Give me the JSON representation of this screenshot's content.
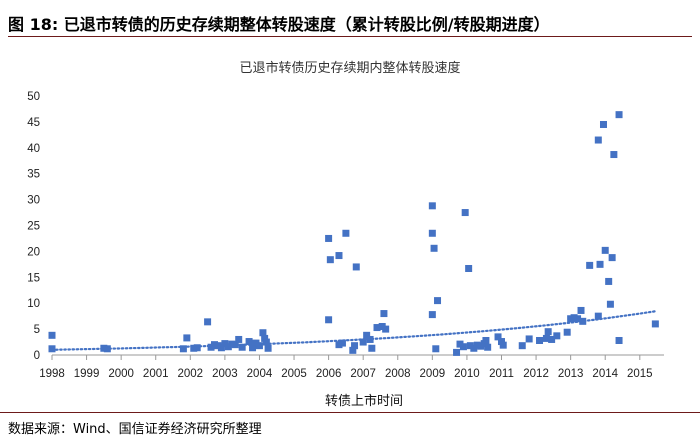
{
  "figure": {
    "heading": "图 18:  已退市转债的历史存续期整体转股速度（累计转股比例/转股期进度）",
    "source": "数据来源：Wind、国信证券经济研究所整理"
  },
  "chart_data": {
    "type": "scatter",
    "title": "已退市转债历史存续期内整体转股速度",
    "xlabel": "转债上市时间",
    "ylabel": "",
    "xlim": [
      1998,
      2015.7
    ],
    "ylim": [
      0,
      50
    ],
    "x_ticks": [
      "1998",
      "1999",
      "2000",
      "2001",
      "2002",
      "2003",
      "2004",
      "2005",
      "2006",
      "2007",
      "2008",
      "2009",
      "2010",
      "2011",
      "2012",
      "2013",
      "2014",
      "2015"
    ],
    "y_ticks": [
      "0",
      "5",
      "10",
      "15",
      "20",
      "25",
      "30",
      "35",
      "40",
      "45",
      "50"
    ],
    "grid": false,
    "legend": "none",
    "marker_color": "#4472c4",
    "trendline": {
      "type": "exponential",
      "style": "dotted",
      "color": "#4472c4",
      "start": [
        1998,
        1.0
      ],
      "end": [
        2015.5,
        8.5
      ]
    },
    "points": [
      {
        "x": 1998.0,
        "y": 3.8
      },
      {
        "x": 1998.0,
        "y": 1.2
      },
      {
        "x": 1999.5,
        "y": 1.3
      },
      {
        "x": 1999.6,
        "y": 1.2
      },
      {
        "x": 2001.8,
        "y": 1.2
      },
      {
        "x": 2001.9,
        "y": 3.3
      },
      {
        "x": 2002.1,
        "y": 1.3
      },
      {
        "x": 2002.2,
        "y": 1.4
      },
      {
        "x": 2002.5,
        "y": 6.4
      },
      {
        "x": 2002.6,
        "y": 1.5
      },
      {
        "x": 2002.7,
        "y": 2.0
      },
      {
        "x": 2002.8,
        "y": 1.8
      },
      {
        "x": 2002.9,
        "y": 1.4
      },
      {
        "x": 2003.0,
        "y": 2.2
      },
      {
        "x": 2003.1,
        "y": 1.6
      },
      {
        "x": 2003.2,
        "y": 2.1
      },
      {
        "x": 2003.3,
        "y": 2.0
      },
      {
        "x": 2003.4,
        "y": 3.0
      },
      {
        "x": 2003.5,
        "y": 1.5
      },
      {
        "x": 2003.7,
        "y": 2.6
      },
      {
        "x": 2003.8,
        "y": 1.4
      },
      {
        "x": 2003.9,
        "y": 2.3
      },
      {
        "x": 2004.0,
        "y": 1.8
      },
      {
        "x": 2004.1,
        "y": 4.3
      },
      {
        "x": 2004.15,
        "y": 3.2
      },
      {
        "x": 2004.2,
        "y": 2.5
      },
      {
        "x": 2004.25,
        "y": 1.3
      },
      {
        "x": 2006.0,
        "y": 22.5
      },
      {
        "x": 2006.05,
        "y": 18.4
      },
      {
        "x": 2006.0,
        "y": 6.8
      },
      {
        "x": 2006.3,
        "y": 19.2
      },
      {
        "x": 2006.3,
        "y": 2.0
      },
      {
        "x": 2006.4,
        "y": 2.3
      },
      {
        "x": 2006.5,
        "y": 23.5
      },
      {
        "x": 2006.7,
        "y": 0.9
      },
      {
        "x": 2006.75,
        "y": 1.8
      },
      {
        "x": 2006.8,
        "y": 17.0
      },
      {
        "x": 2007.0,
        "y": 2.5
      },
      {
        "x": 2007.1,
        "y": 3.8
      },
      {
        "x": 2007.2,
        "y": 3.0
      },
      {
        "x": 2007.25,
        "y": 1.3
      },
      {
        "x": 2007.4,
        "y": 5.3
      },
      {
        "x": 2007.55,
        "y": 5.5
      },
      {
        "x": 2007.6,
        "y": 8.0
      },
      {
        "x": 2007.65,
        "y": 5.0
      },
      {
        "x": 2009.0,
        "y": 28.8
      },
      {
        "x": 2009.0,
        "y": 23.5
      },
      {
        "x": 2009.05,
        "y": 20.6
      },
      {
        "x": 2009.0,
        "y": 7.8
      },
      {
        "x": 2009.15,
        "y": 10.5
      },
      {
        "x": 2009.1,
        "y": 1.2
      },
      {
        "x": 2009.7,
        "y": 0.5
      },
      {
        "x": 2009.8,
        "y": 2.1
      },
      {
        "x": 2009.9,
        "y": 1.6
      },
      {
        "x": 2009.95,
        "y": 27.5
      },
      {
        "x": 2010.05,
        "y": 16.7
      },
      {
        "x": 2010.1,
        "y": 1.8
      },
      {
        "x": 2010.2,
        "y": 1.3
      },
      {
        "x": 2010.3,
        "y": 1.9
      },
      {
        "x": 2010.4,
        "y": 1.7
      },
      {
        "x": 2010.5,
        "y": 2.2
      },
      {
        "x": 2010.55,
        "y": 2.8
      },
      {
        "x": 2010.6,
        "y": 1.5
      },
      {
        "x": 2010.9,
        "y": 3.5
      },
      {
        "x": 2011.0,
        "y": 2.6
      },
      {
        "x": 2011.05,
        "y": 1.9
      },
      {
        "x": 2011.6,
        "y": 1.8
      },
      {
        "x": 2011.8,
        "y": 3.1
      },
      {
        "x": 2012.1,
        "y": 2.8
      },
      {
        "x": 2012.3,
        "y": 3.2
      },
      {
        "x": 2012.35,
        "y": 4.5
      },
      {
        "x": 2012.45,
        "y": 3.0
      },
      {
        "x": 2012.6,
        "y": 3.7
      },
      {
        "x": 2012.9,
        "y": 4.4
      },
      {
        "x": 2013.0,
        "y": 7.0
      },
      {
        "x": 2013.1,
        "y": 7.2
      },
      {
        "x": 2013.2,
        "y": 7.0
      },
      {
        "x": 2013.3,
        "y": 8.6
      },
      {
        "x": 2013.35,
        "y": 6.5
      },
      {
        "x": 2013.55,
        "y": 17.3
      },
      {
        "x": 2013.8,
        "y": 41.5
      },
      {
        "x": 2013.95,
        "y": 44.5
      },
      {
        "x": 2013.85,
        "y": 17.5
      },
      {
        "x": 2013.8,
        "y": 7.5
      },
      {
        "x": 2014.0,
        "y": 20.2
      },
      {
        "x": 2014.1,
        "y": 14.2
      },
      {
        "x": 2014.15,
        "y": 9.8
      },
      {
        "x": 2014.2,
        "y": 18.8
      },
      {
        "x": 2014.25,
        "y": 38.7
      },
      {
        "x": 2014.4,
        "y": 46.4
      },
      {
        "x": 2014.4,
        "y": 2.8
      },
      {
        "x": 2015.45,
        "y": 6.0
      }
    ]
  }
}
